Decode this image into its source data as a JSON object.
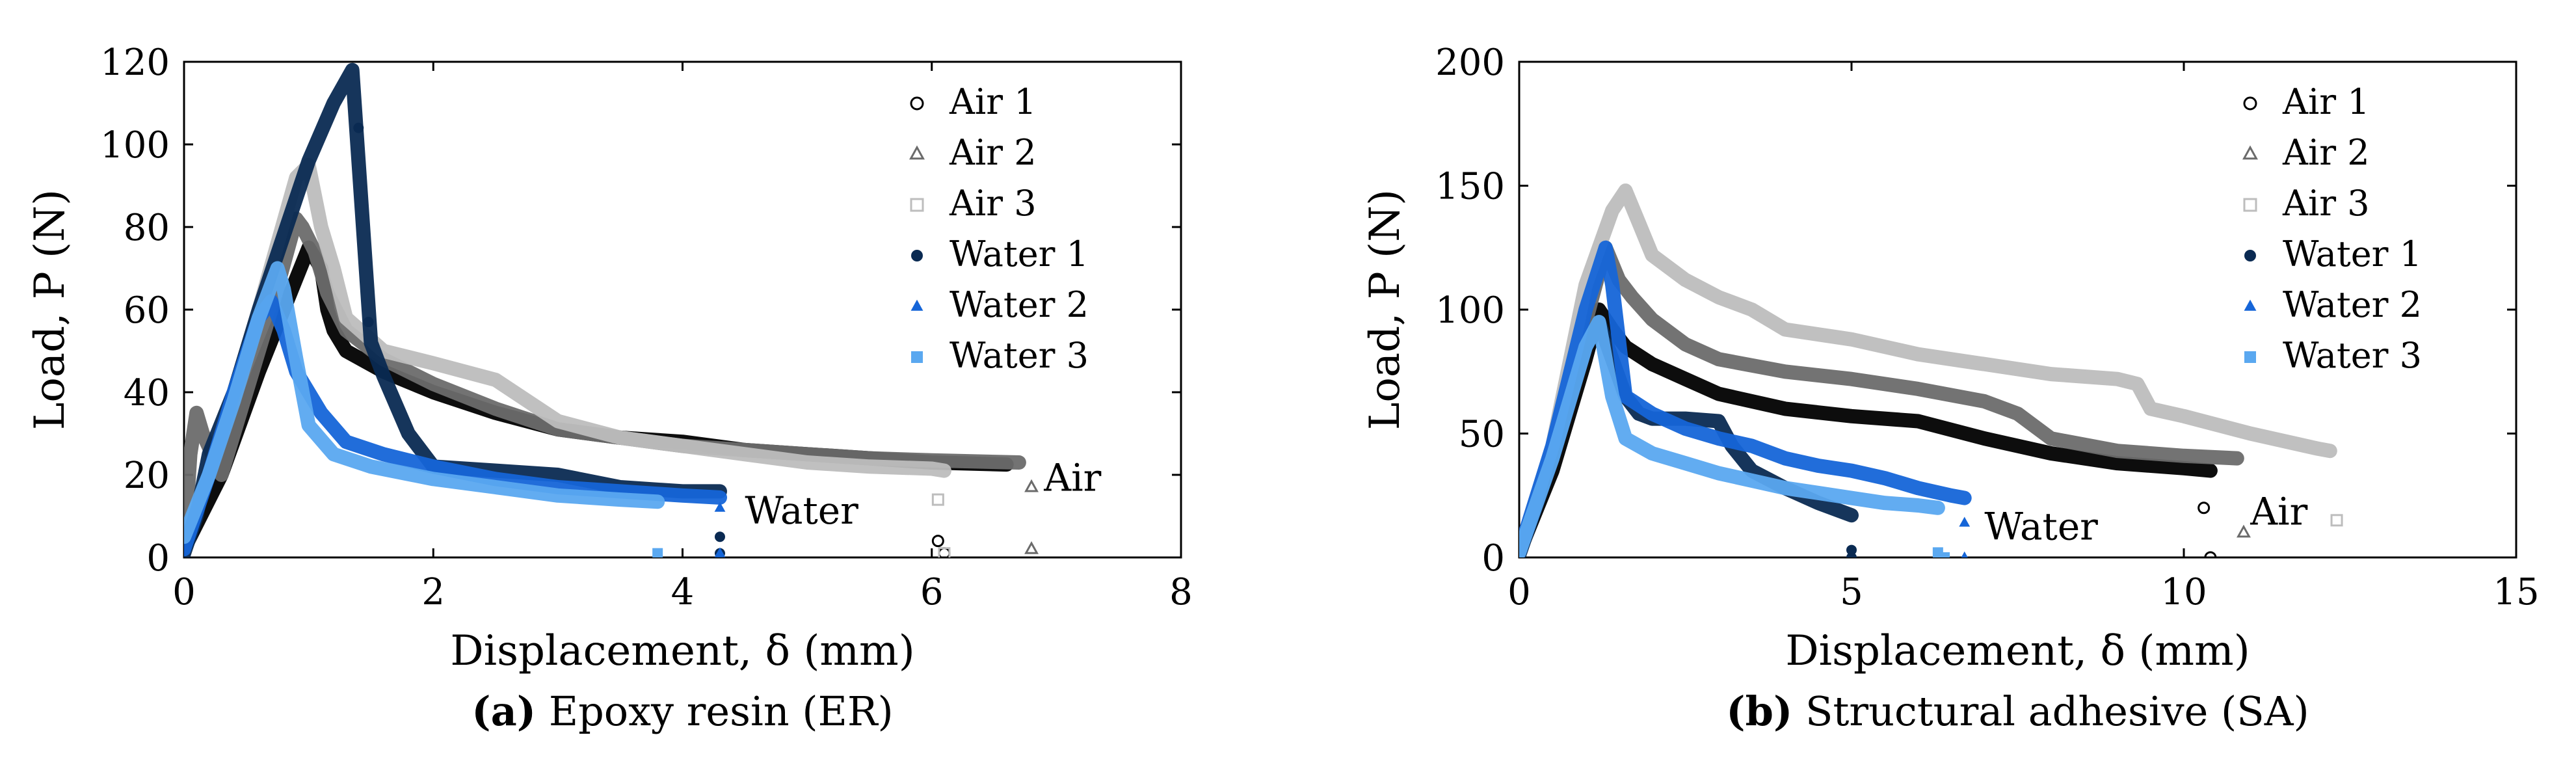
{
  "colors": {
    "air1": "#000000",
    "air2": "#6b6b6b",
    "air3": "#bdbdbd",
    "water1": "#0a2a52",
    "water2": "#1565d8",
    "water3": "#5aa8f0"
  },
  "chart_data": [
    {
      "type": "scatter",
      "caption_label": "(a)",
      "caption_text": " Epoxy resin (ER)",
      "xlabel": "Displacement, δ (mm)",
      "ylabel": "Load, P (N)",
      "xlim": [
        0,
        8
      ],
      "ylim": [
        0,
        120
      ],
      "xticks": [
        0,
        2,
        4,
        6,
        8
      ],
      "yticks": [
        0,
        20,
        40,
        60,
        80,
        100,
        120
      ],
      "xtick_labels": [
        "0",
        "2",
        "4",
        "6",
        "8"
      ],
      "ytick_labels": [
        "0",
        "20",
        "40",
        "60",
        "80",
        "100",
        "120"
      ],
      "legend": [
        "Air 1",
        "Air 2",
        "Air 3",
        "Water 1",
        "Water 2",
        "Water 3"
      ],
      "annotations": [
        {
          "text": "Air",
          "x": 6.9,
          "y": 19
        },
        {
          "text": "Water",
          "x": 4.5,
          "y": 11
        }
      ],
      "series": [
        {
          "name": "Air 1",
          "color_key": "air1",
          "marker": "circle",
          "points": [
            [
              0,
              2
            ],
            [
              0.3,
              20
            ],
            [
              0.6,
              45
            ],
            [
              0.8,
              60
            ],
            [
              1.0,
              75
            ],
            [
              1.1,
              70
            ],
            [
              1.15,
              60
            ],
            [
              1.2,
              55
            ],
            [
              1.3,
              50
            ],
            [
              1.6,
              45
            ],
            [
              2.0,
              40
            ],
            [
              2.5,
              35
            ],
            [
              3.0,
              31
            ],
            [
              3.5,
              29
            ],
            [
              4.0,
              28
            ],
            [
              4.5,
              26
            ],
            [
              5.0,
              25
            ],
            [
              5.5,
              24
            ],
            [
              6.0,
              23
            ],
            [
              6.6,
              22.5
            ]
          ],
          "outliers": [
            [
              6.05,
              4
            ],
            [
              6.1,
              1
            ]
          ]
        },
        {
          "name": "Air 2",
          "color_key": "air2",
          "marker": "triangle",
          "points": [
            [
              0,
              2
            ],
            [
              0.05,
              25
            ],
            [
              0.1,
              35
            ],
            [
              0.15,
              30
            ],
            [
              0.3,
              20
            ],
            [
              0.5,
              40
            ],
            [
              0.7,
              60
            ],
            [
              0.9,
              82
            ],
            [
              0.95,
              80
            ],
            [
              1.05,
              74
            ],
            [
              1.15,
              64
            ],
            [
              1.3,
              55
            ],
            [
              1.6,
              48
            ],
            [
              2.0,
              42
            ],
            [
              2.5,
              36
            ],
            [
              3.0,
              31
            ],
            [
              3.5,
              29
            ],
            [
              4.0,
              27
            ],
            [
              4.5,
              26
            ],
            [
              5.0,
              25
            ],
            [
              5.5,
              24
            ],
            [
              6.0,
              23.5
            ],
            [
              6.7,
              23
            ]
          ],
          "outliers": [
            [
              6.8,
              17
            ],
            [
              6.8,
              2
            ]
          ]
        },
        {
          "name": "Air 3",
          "color_key": "air3",
          "marker": "square",
          "points": [
            [
              0,
              3
            ],
            [
              0.3,
              30
            ],
            [
              0.6,
              60
            ],
            [
              0.9,
              92
            ],
            [
              1.0,
              95
            ],
            [
              1.1,
              80
            ],
            [
              1.2,
              70
            ],
            [
              1.3,
              58
            ],
            [
              1.6,
              50
            ],
            [
              2.0,
              47
            ],
            [
              2.5,
              43
            ],
            [
              3.0,
              33
            ],
            [
              3.5,
              29
            ],
            [
              4.0,
              27
            ],
            [
              4.5,
              25
            ],
            [
              5.0,
              23
            ],
            [
              5.5,
              22
            ],
            [
              6.0,
              21.5
            ],
            [
              6.1,
              21
            ]
          ],
          "outliers": [
            [
              6.05,
              14
            ],
            [
              6.1,
              1
            ]
          ]
        },
        {
          "name": "Water 1",
          "color_key": "water1",
          "marker": "circle",
          "points": [
            [
              0,
              1
            ],
            [
              0.1,
              10
            ],
            [
              0.2,
              25
            ],
            [
              0.4,
              40
            ],
            [
              0.6,
              60
            ],
            [
              0.8,
              78
            ],
            [
              1.0,
              96
            ],
            [
              1.2,
              110
            ],
            [
              1.35,
              118
            ],
            [
              1.5,
              52
            ],
            [
              1.6,
              44
            ],
            [
              1.8,
              30
            ],
            [
              2.0,
              22
            ],
            [
              2.5,
              21
            ],
            [
              3.0,
              20
            ],
            [
              3.5,
              17
            ],
            [
              4.0,
              16
            ],
            [
              4.3,
              16
            ]
          ],
          "outliers": [
            [
              1.4,
              104
            ],
            [
              1.48,
              57
            ],
            [
              4.3,
              5
            ],
            [
              4.3,
              1
            ]
          ]
        },
        {
          "name": "Water 2",
          "color_key": "water2",
          "marker": "triangle",
          "points": [
            [
              0,
              2
            ],
            [
              0.2,
              20
            ],
            [
              0.4,
              40
            ],
            [
              0.6,
              58
            ],
            [
              0.7,
              62
            ],
            [
              0.8,
              55
            ],
            [
              0.9,
              45
            ],
            [
              1.1,
              35
            ],
            [
              1.3,
              28
            ],
            [
              1.6,
              25
            ],
            [
              2.0,
              22
            ],
            [
              2.5,
              19
            ],
            [
              3.0,
              17
            ],
            [
              3.5,
              16
            ],
            [
              4.0,
              15
            ],
            [
              4.3,
              14.5
            ]
          ],
          "outliers": [
            [
              4.3,
              12
            ],
            [
              4.3,
              1
            ]
          ]
        },
        {
          "name": "Water 3",
          "color_key": "water3",
          "marker": "square",
          "points": [
            [
              0,
              5
            ],
            [
              0.2,
              20
            ],
            [
              0.4,
              38
            ],
            [
              0.6,
              58
            ],
            [
              0.75,
              70
            ],
            [
              0.8,
              65
            ],
            [
              0.9,
              48
            ],
            [
              1.0,
              32
            ],
            [
              1.2,
              25
            ],
            [
              1.5,
              22
            ],
            [
              2.0,
              19
            ],
            [
              2.5,
              17
            ],
            [
              3.0,
              15
            ],
            [
              3.5,
              14
            ],
            [
              3.8,
              13.5
            ]
          ],
          "outliers": [
            [
              3.8,
              1
            ]
          ]
        }
      ]
    },
    {
      "type": "scatter",
      "caption_label": "(b)",
      "caption_text": " Structural adhesive (SA)",
      "xlabel": "Displacement, δ (mm)",
      "ylabel": "Load, P (N)",
      "xlim": [
        0,
        15
      ],
      "ylim": [
        0,
        200
      ],
      "xticks": [
        0,
        5,
        10,
        15
      ],
      "yticks": [
        0,
        50,
        100,
        150,
        200
      ],
      "xtick_labels": [
        "0",
        "5",
        "10",
        "15"
      ],
      "ytick_labels": [
        "0",
        "50",
        "100",
        "150",
        "200"
      ],
      "legend": [
        "Air 1",
        "Air 2",
        "Air 3",
        "Water 1",
        "Water 2",
        "Water 3"
      ],
      "annotations": [
        {
          "text": "Air",
          "x": 11.0,
          "y": 18
        },
        {
          "text": "Water",
          "x": 7.0,
          "y": 12
        }
      ],
      "series": [
        {
          "name": "Air 1",
          "color_key": "air1",
          "marker": "circle",
          "points": [
            [
              0,
              2
            ],
            [
              0.5,
              35
            ],
            [
              1.0,
              80
            ],
            [
              1.2,
              100
            ],
            [
              1.4,
              92
            ],
            [
              1.6,
              85
            ],
            [
              2.0,
              78
            ],
            [
              2.5,
              72
            ],
            [
              3.0,
              66
            ],
            [
              4.0,
              60
            ],
            [
              5.0,
              57
            ],
            [
              6.0,
              55
            ],
            [
              7.0,
              48
            ],
            [
              8.0,
              42
            ],
            [
              9.0,
              38
            ],
            [
              10.0,
              36
            ],
            [
              10.4,
              35
            ]
          ],
          "outliers": [
            [
              10.3,
              20
            ],
            [
              10.4,
              0
            ]
          ]
        },
        {
          "name": "Air 2",
          "color_key": "air2",
          "marker": "triangle",
          "points": [
            [
              0,
              2
            ],
            [
              0.5,
              40
            ],
            [
              1.0,
              95
            ],
            [
              1.3,
              125
            ],
            [
              1.5,
              112
            ],
            [
              1.7,
              105
            ],
            [
              2.0,
              96
            ],
            [
              2.5,
              86
            ],
            [
              3.0,
              80
            ],
            [
              4.0,
              75
            ],
            [
              5.0,
              72
            ],
            [
              6.0,
              68
            ],
            [
              7.0,
              63
            ],
            [
              7.5,
              58
            ],
            [
              8.0,
              48
            ],
            [
              9.0,
              43
            ],
            [
              10.0,
              41
            ],
            [
              10.8,
              40
            ]
          ],
          "outliers": [
            [
              10.9,
              10
            ]
          ]
        },
        {
          "name": "Air 3",
          "color_key": "air3",
          "marker": "square",
          "points": [
            [
              0,
              2
            ],
            [
              0.5,
              45
            ],
            [
              1.0,
              110
            ],
            [
              1.4,
              140
            ],
            [
              1.6,
              148
            ],
            [
              1.8,
              135
            ],
            [
              2.0,
              122
            ],
            [
              2.5,
              112
            ],
            [
              3.0,
              105
            ],
            [
              3.5,
              100
            ],
            [
              4.0,
              92
            ],
            [
              5.0,
              88
            ],
            [
              6.0,
              82
            ],
            [
              7.0,
              78
            ],
            [
              8.0,
              74
            ],
            [
              9.0,
              72
            ],
            [
              9.3,
              70
            ],
            [
              9.5,
              60
            ],
            [
              10.0,
              57
            ],
            [
              11.0,
              50
            ],
            [
              12.0,
              44
            ],
            [
              12.2,
              43
            ]
          ],
          "outliers": [
            [
              12.3,
              15
            ]
          ]
        },
        {
          "name": "Water 1",
          "color_key": "water1",
          "marker": "circle",
          "points": [
            [
              0,
              1
            ],
            [
              0.5,
              40
            ],
            [
              1.0,
              85
            ],
            [
              1.2,
              95
            ],
            [
              1.4,
              80
            ],
            [
              1.6,
              65
            ],
            [
              1.8,
              58
            ],
            [
              2.0,
              56
            ],
            [
              2.5,
              56
            ],
            [
              3.0,
              55
            ],
            [
              3.2,
              45
            ],
            [
              3.5,
              35
            ],
            [
              4.0,
              28
            ],
            [
              4.5,
              22
            ],
            [
              5.0,
              17
            ]
          ],
          "outliers": [
            [
              5.0,
              3
            ],
            [
              5.0,
              0
            ]
          ]
        },
        {
          "name": "Water 2",
          "color_key": "water2",
          "marker": "triangle",
          "points": [
            [
              0,
              2
            ],
            [
              0.5,
              45
            ],
            [
              1.0,
              100
            ],
            [
              1.3,
              125
            ],
            [
              1.4,
              110
            ],
            [
              1.6,
              65
            ],
            [
              2.0,
              58
            ],
            [
              2.5,
              52
            ],
            [
              3.0,
              48
            ],
            [
              3.5,
              45
            ],
            [
              4.0,
              40
            ],
            [
              4.5,
              37
            ],
            [
              5.0,
              35
            ],
            [
              5.5,
              32
            ],
            [
              6.0,
              28
            ],
            [
              6.5,
              25
            ],
            [
              6.7,
              24
            ]
          ],
          "outliers": [
            [
              6.7,
              14
            ],
            [
              6.7,
              0
            ]
          ]
        },
        {
          "name": "Water 3",
          "color_key": "water3",
          "marker": "square",
          "points": [
            [
              0,
              2
            ],
            [
              0.5,
              40
            ],
            [
              1.0,
              85
            ],
            [
              1.2,
              95
            ],
            [
              1.4,
              65
            ],
            [
              1.6,
              48
            ],
            [
              2.0,
              42
            ],
            [
              2.5,
              38
            ],
            [
              3.0,
              34
            ],
            [
              3.5,
              31
            ],
            [
              4.0,
              28
            ],
            [
              4.5,
              26
            ],
            [
              5.0,
              24
            ],
            [
              5.5,
              22
            ],
            [
              6.0,
              21
            ],
            [
              6.3,
              20
            ]
          ],
          "outliers": [
            [
              6.3,
              2
            ],
            [
              6.4,
              0
            ]
          ]
        }
      ]
    }
  ]
}
